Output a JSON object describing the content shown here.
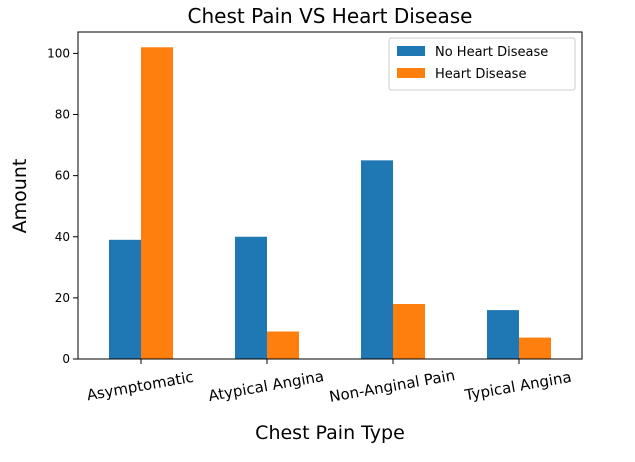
{
  "chart_data": {
    "type": "bar",
    "title": "Chest Pain VS Heart Disease",
    "xlabel": "Chest Pain Type",
    "ylabel": "Amount",
    "categories": [
      "Asymptomatic",
      "Atypical Angina",
      "Non-Anginal Pain",
      "Typical Angina"
    ],
    "series": [
      {
        "name": "No Heart Disease",
        "color": "#1f77b4",
        "values": [
          39,
          40,
          65,
          16
        ]
      },
      {
        "name": "Heart Disease",
        "color": "#ff7f0e",
        "values": [
          102,
          9,
          18,
          7
        ]
      }
    ],
    "ylim": [
      0,
      107
    ],
    "yticks": [
      0,
      20,
      40,
      60,
      80,
      100
    ],
    "grid": false,
    "legend": "top-right"
  }
}
